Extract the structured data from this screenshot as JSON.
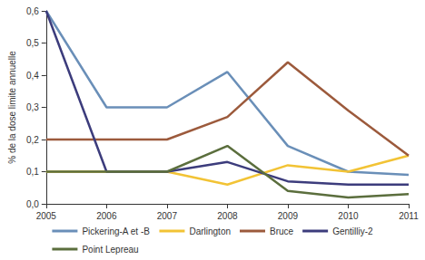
{
  "chart_data": {
    "type": "line",
    "y_label": "% de la dose limite annuelle",
    "categories": [
      "2005",
      "2006",
      "2007",
      "2008",
      "2009",
      "2010",
      "2011"
    ],
    "series": [
      {
        "name": "Pickering-A et -B",
        "color": "#6a8fb8",
        "values": [
          0.6,
          0.3,
          0.3,
          0.41,
          0.18,
          0.1,
          0.09
        ]
      },
      {
        "name": "Darlington",
        "color": "#f2c335",
        "values": [
          0.1,
          0.1,
          0.1,
          0.06,
          0.12,
          0.1,
          0.15
        ]
      },
      {
        "name": "Bruce",
        "color": "#9c5a3c",
        "values": [
          0.2,
          0.2,
          0.2,
          0.27,
          0.44,
          0.29,
          0.15
        ]
      },
      {
        "name": "Gentilliy-2",
        "color": "#3c3c7c",
        "values": [
          0.6,
          0.1,
          0.1,
          0.13,
          0.07,
          0.06,
          0.06
        ]
      },
      {
        "name": "Point Lepreau",
        "color": "#5b6e3d",
        "values": [
          0.1,
          0.1,
          0.1,
          0.18,
          0.04,
          0.02,
          0.03
        ]
      }
    ],
    "ylim": [
      0,
      0.6
    ],
    "yticks": [
      {
        "value": 0,
        "label": "0,0"
      },
      {
        "value": 0.1,
        "label": "0,1"
      },
      {
        "value": 0.2,
        "label": "0,2"
      },
      {
        "value": 0.3,
        "label": "0,3"
      },
      {
        "value": 0.4,
        "label": "0,4"
      },
      {
        "value": 0.5,
        "label": "0,5"
      },
      {
        "value": 0.6,
        "label": "0,6"
      }
    ],
    "grid": false,
    "legend": "bottom"
  }
}
